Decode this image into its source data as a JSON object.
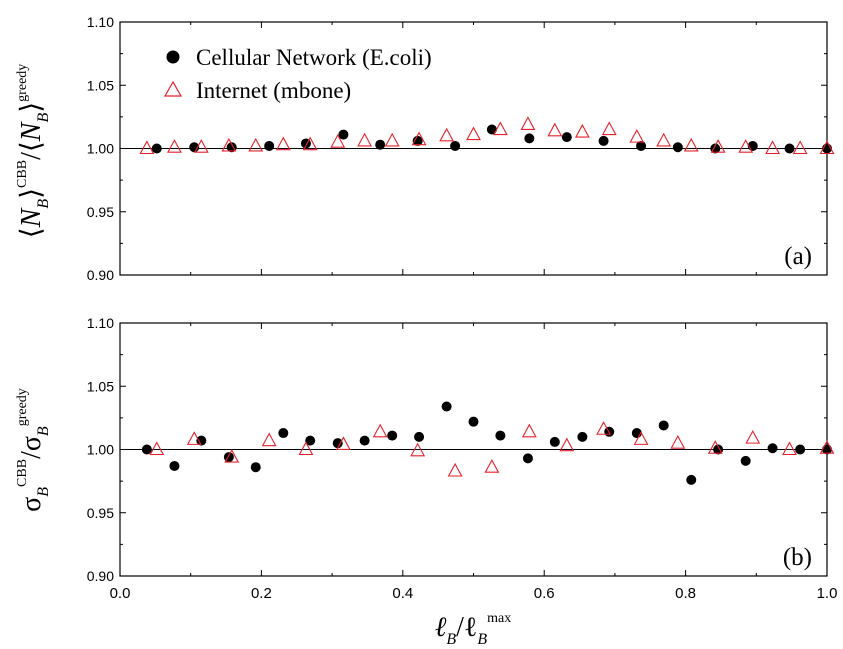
{
  "chart_data": [
    {
      "type": "scatter",
      "panel_label": "(a)",
      "ylabel": {
        "open": "⟨",
        "main": "N",
        "sub": "B",
        "close1": "⟩",
        "sup1": "CBB",
        "slash": "/⟨",
        "main2": "N",
        "sub2": "B",
        "close2": "⟩",
        "sup2": "greedy"
      },
      "xlim": [
        0.0,
        1.0
      ],
      "ylim": [
        0.9,
        1.1
      ],
      "yticks": [
        "0.90",
        "0.95",
        "1.00",
        "1.05",
        "1.10"
      ],
      "xticks": [],
      "reference_line": 1.0,
      "legend": [
        {
          "name": "Cellular Network (E.coli)",
          "marker": "filled-circle",
          "color": "#000000"
        },
        {
          "name": "Internet (mbone)",
          "marker": "open-triangle",
          "color": "#e8202a"
        }
      ],
      "series": [
        {
          "name": "Cellular Network (E.coli)",
          "x": [
            0.052,
            0.105,
            0.158,
            0.211,
            0.263,
            0.316,
            0.368,
            0.421,
            0.474,
            0.526,
            0.579,
            0.632,
            0.684,
            0.737,
            0.789,
            0.842,
            0.895,
            0.947,
            1.0
          ],
          "y": [
            1.0,
            1.001,
            1.001,
            1.002,
            1.004,
            1.011,
            1.003,
            1.006,
            1.002,
            1.015,
            1.008,
            1.009,
            1.006,
            1.002,
            1.001,
            1.0,
            1.002,
            1.0,
            1.0
          ]
        },
        {
          "name": "Internet (mbone)",
          "x": [
            0.038,
            0.077,
            0.115,
            0.154,
            0.192,
            0.231,
            0.269,
            0.308,
            0.346,
            0.385,
            0.423,
            0.462,
            0.5,
            0.538,
            0.577,
            0.615,
            0.654,
            0.692,
            0.731,
            0.769,
            0.808,
            0.846,
            0.885,
            0.923,
            0.962,
            1.0
          ],
          "y": [
            1.0,
            1.001,
            1.001,
            1.002,
            1.002,
            1.003,
            1.003,
            1.005,
            1.006,
            1.006,
            1.007,
            1.01,
            1.011,
            1.015,
            1.019,
            1.014,
            1.013,
            1.015,
            1.009,
            1.006,
            1.002,
            1.001,
            1.001,
            1.0,
            1.0,
            1.0
          ]
        }
      ]
    },
    {
      "type": "scatter",
      "panel_label": "(b)",
      "ylabel": {
        "main": "σ",
        "sub": "B",
        "sup1": "CBB",
        "slash": "/σ",
        "sub2": "B",
        "sup2": "greedy"
      },
      "xlabel": {
        "main": "ℓ",
        "sub": "B",
        "slash": "/ℓ",
        "sub2": "B",
        "sup2": "max"
      },
      "xlim": [
        0.0,
        1.0
      ],
      "ylim": [
        0.9,
        1.1
      ],
      "yticks": [
        "0.90",
        "0.95",
        "1.00",
        "1.05",
        "1.10"
      ],
      "xticks": [
        "0.0",
        "0.2",
        "0.4",
        "0.6",
        "0.8",
        "1.0"
      ],
      "reference_line": 1.0,
      "series": [
        {
          "name": "Cellular Network (E.coli)",
          "x": [
            0.038,
            0.077,
            0.115,
            0.154,
            0.192,
            0.231,
            0.269,
            0.308,
            0.346,
            0.385,
            0.423,
            0.462,
            0.5,
            0.538,
            0.577,
            0.615,
            0.654,
            0.692,
            0.731,
            0.769,
            0.808,
            0.846,
            0.885,
            0.923,
            0.962,
            1.0
          ],
          "y": [
            1.0,
            0.987,
            1.007,
            0.994,
            0.986,
            1.013,
            1.007,
            1.005,
            1.007,
            1.011,
            1.01,
            1.034,
            1.022,
            1.011,
            0.993,
            1.006,
            1.01,
            1.014,
            1.013,
            1.019,
            0.976,
            1.0,
            0.991,
            1.001,
            1.0,
            1.0
          ]
        },
        {
          "name": "Internet (mbone)",
          "x": [
            0.052,
            0.105,
            0.158,
            0.211,
            0.263,
            0.316,
            0.368,
            0.421,
            0.474,
            0.526,
            0.579,
            0.632,
            0.684,
            0.737,
            0.789,
            0.842,
            0.895,
            0.947,
            1.0
          ],
          "y": [
            1.0,
            1.008,
            0.994,
            1.007,
            1.0,
            1.004,
            1.014,
            0.999,
            0.983,
            0.986,
            1.014,
            1.003,
            1.016,
            1.008,
            1.005,
            1.001,
            1.009,
            1.0,
            1.001
          ]
        }
      ]
    }
  ]
}
